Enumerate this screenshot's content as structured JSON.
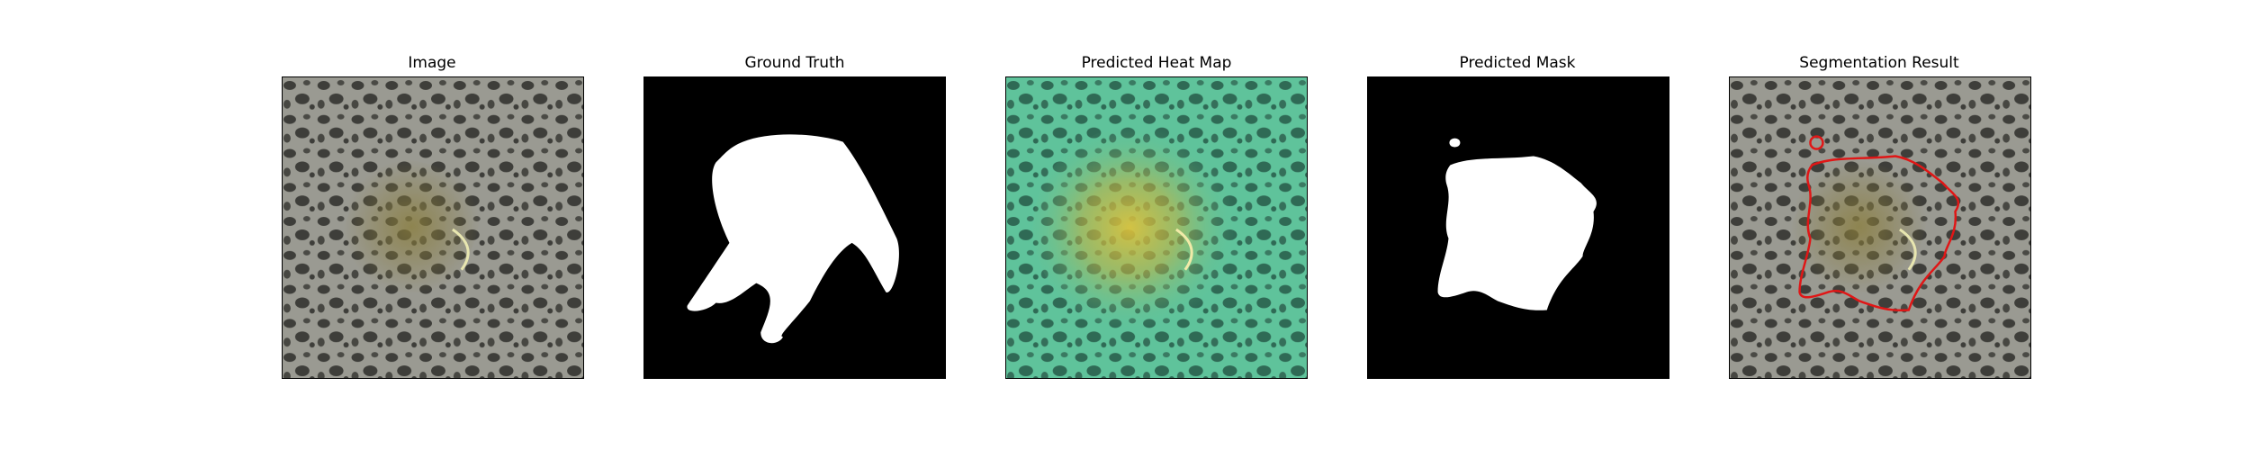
{
  "panels": [
    {
      "title": "Image"
    },
    {
      "title": "Ground Truth"
    },
    {
      "title": "Predicted Heat Map"
    },
    {
      "title": "Predicted Mask"
    },
    {
      "title": "Segmentation Result"
    }
  ],
  "colors": {
    "background": "#ffffff",
    "mask_foreground": "#ffffff",
    "mask_background": "#000000",
    "heatmap_low": "#5fc39b",
    "heatmap_high": "#e0c23a",
    "contour": "#e01616",
    "terrain_base": "#9a9a92",
    "terrain_spots": "#3e3e3a",
    "lesion_tint": "#8a7d3a"
  }
}
